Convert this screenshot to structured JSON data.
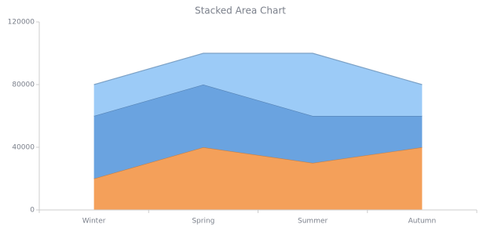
{
  "chart_data": {
    "type": "stacked-area",
    "title": "Stacked Area Chart",
    "categories": [
      "Winter",
      "Spring",
      "Summer",
      "Autumn"
    ],
    "series": [
      {
        "color": "#f4a05a",
        "values": [
          20000,
          40000,
          30000,
          40000
        ]
      },
      {
        "color": "#6aa3e0",
        "values": [
          40000,
          40000,
          30000,
          20000
        ]
      },
      {
        "color": "#9ccbf7",
        "values": [
          20000,
          20000,
          40000,
          20000
        ]
      }
    ],
    "ylim": [
      0,
      120000
    ],
    "yticks": [
      0,
      40000,
      80000,
      120000
    ]
  }
}
